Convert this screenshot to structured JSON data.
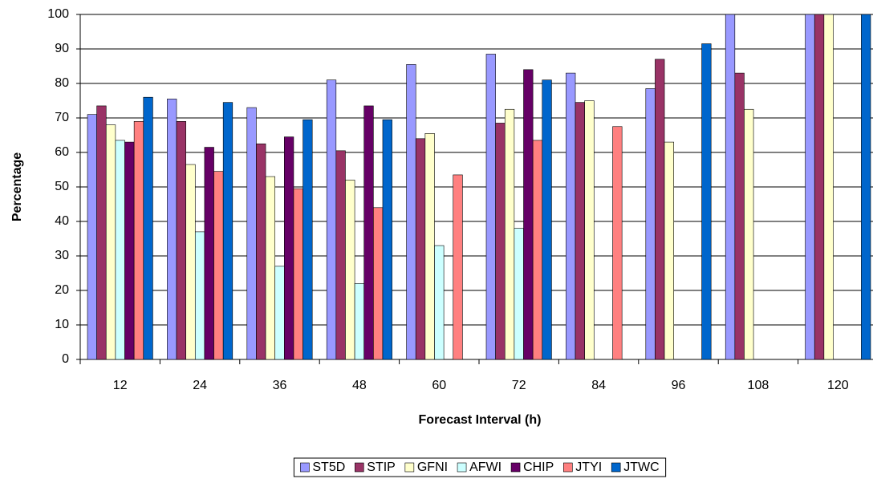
{
  "chart_data": {
    "type": "bar",
    "x_label": "Forecast Interval (h)",
    "y_label": "Percentage",
    "categories": [
      "12",
      "24",
      "36",
      "48",
      "60",
      "72",
      "84",
      "96",
      "108",
      "120"
    ],
    "series": [
      {
        "name": "ST5D",
        "color": "#9999ff",
        "values": [
          71,
          75.5,
          73,
          81,
          85.5,
          88.5,
          83,
          78.5,
          100,
          100
        ]
      },
      {
        "name": "STIP",
        "color": "#993366",
        "values": [
          73.5,
          69,
          62.5,
          60.5,
          64,
          68.5,
          74.5,
          87,
          83,
          100
        ]
      },
      {
        "name": "GFNI",
        "color": "#ffffcc",
        "values": [
          68,
          56.5,
          53,
          52,
          65.5,
          72.5,
          75,
          63,
          72.5,
          100
        ]
      },
      {
        "name": "AFWI",
        "color": "#ccffff",
        "values": [
          63.5,
          37,
          27,
          22,
          33,
          38,
          null,
          null,
          null,
          null
        ]
      },
      {
        "name": "CHIP",
        "color": "#660066",
        "values": [
          63,
          61.5,
          64.5,
          73.5,
          null,
          84,
          null,
          null,
          null,
          null
        ]
      },
      {
        "name": "JTYI",
        "color": "#ff8080",
        "values": [
          69,
          54.5,
          49.5,
          44,
          53.5,
          63.5,
          67.5,
          null,
          null,
          null
        ]
      },
      {
        "name": "JTWC",
        "color": "#0066cc",
        "values": [
          76,
          74.5,
          69.5,
          69.5,
          null,
          81,
          null,
          91.5,
          null,
          100
        ]
      }
    ],
    "ylim": [
      0,
      100
    ],
    "yticks": [
      0,
      10,
      20,
      30,
      40,
      50,
      60,
      70,
      80,
      90,
      100
    ],
    "grid": true,
    "legend": "bottom"
  }
}
